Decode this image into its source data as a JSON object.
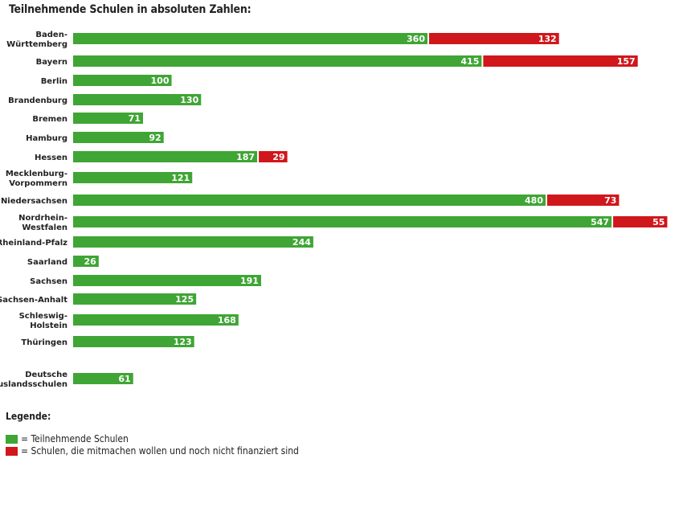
{
  "chart_data": {
    "type": "bar",
    "orientation": "horizontal",
    "stacked": true,
    "title": "Teilnehmende Schulen in absoluten Zahlen:",
    "categories": [
      [
        "Baden-",
        "Württemberg"
      ],
      [
        "Bayern"
      ],
      [
        "Berlin"
      ],
      [
        "Brandenburg"
      ],
      [
        "Bremen"
      ],
      [
        "Hamburg"
      ],
      [
        "Hessen"
      ],
      [
        "Mecklenburg-",
        "Vorpommern"
      ],
      [
        "Niedersachsen"
      ],
      [
        "Nordrhein-",
        "Westfalen"
      ],
      [
        "Rheinland-Pfalz"
      ],
      [
        "Saarland"
      ],
      [
        "Sachsen"
      ],
      [
        "Sachsen-Anhalt"
      ],
      [
        "Schleswig-",
        "Holstein"
      ],
      [
        "Thüringen"
      ],
      [
        "Deutsche",
        "Auslandsschulen"
      ]
    ],
    "series": [
      {
        "name": "Teilnehmende Schulen",
        "color": "#3fa535",
        "values": [
          360,
          415,
          100,
          130,
          71,
          92,
          187,
          121,
          480,
          547,
          244,
          26,
          191,
          125,
          168,
          123,
          61
        ]
      },
      {
        "name": "Schulen, die mitmachen wollen und noch nicht finanziert sind",
        "color": "#d0171b",
        "values": [
          132,
          157,
          null,
          null,
          null,
          null,
          29,
          null,
          73,
          55,
          null,
          null,
          null,
          null,
          null,
          null,
          null
        ]
      }
    ],
    "grid": false,
    "axes_visible": false,
    "data_labels": true,
    "legend": {
      "title": "Legende:",
      "placement": "bottom-left",
      "entries": [
        "= Teilnehmende Schulen",
        "= Schulen, die mitmachen wollen und noch nicht finanziert sind"
      ]
    }
  }
}
